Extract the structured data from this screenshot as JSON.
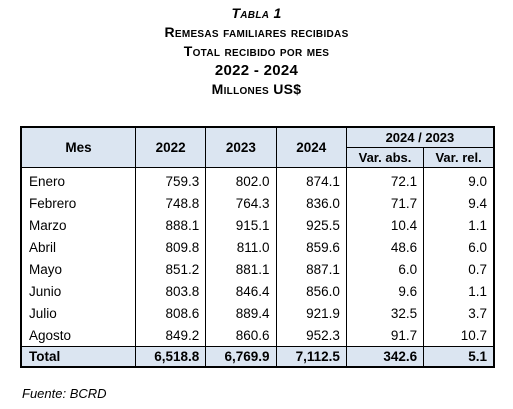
{
  "header": {
    "table_number": "Tabla 1",
    "title": "Remesas familiares recibidas",
    "subtitle": "Total recibido por mes",
    "period": "2022 - 2024",
    "units": "Millones US$"
  },
  "table": {
    "col_month": "Mes",
    "col_2022": "2022",
    "col_2023": "2023",
    "col_2024": "2024",
    "group_label": "2024 / 2023",
    "col_var_abs": "Var. abs.",
    "col_var_rel": "Var. rel.",
    "rows": [
      {
        "month": "Enero",
        "y2022": "759.3",
        "y2023": "802.0",
        "y2024": "874.1",
        "abs": "72.1",
        "rel": "9.0"
      },
      {
        "month": "Febrero",
        "y2022": "748.8",
        "y2023": "764.3",
        "y2024": "836.0",
        "abs": "71.7",
        "rel": "9.4"
      },
      {
        "month": "Marzo",
        "y2022": "888.1",
        "y2023": "915.1",
        "y2024": "925.5",
        "abs": "10.4",
        "rel": "1.1"
      },
      {
        "month": "Abril",
        "y2022": "809.8",
        "y2023": "811.0",
        "y2024": "859.6",
        "abs": "48.6",
        "rel": "6.0"
      },
      {
        "month": "Mayo",
        "y2022": "851.2",
        "y2023": "881.1",
        "y2024": "887.1",
        "abs": "6.0",
        "rel": "0.7"
      },
      {
        "month": "Junio",
        "y2022": "803.8",
        "y2023": "846.4",
        "y2024": "856.0",
        "abs": "9.6",
        "rel": "1.1"
      },
      {
        "month": "Julio",
        "y2022": "808.6",
        "y2023": "889.4",
        "y2024": "921.9",
        "abs": "32.5",
        "rel": "3.7"
      },
      {
        "month": "Agosto",
        "y2022": "849.2",
        "y2023": "860.6",
        "y2024": "952.3",
        "abs": "91.7",
        "rel": "10.7"
      }
    ],
    "total": {
      "month": "Total",
      "y2022": "6,518.8",
      "y2023": "6,769.9",
      "y2024": "7,112.5",
      "abs": "342.6",
      "rel": "5.1"
    }
  },
  "footer": {
    "source": "Fuente: BCRD"
  },
  "colors": {
    "header_fill": "#dbe5f1",
    "border": "#000000"
  }
}
